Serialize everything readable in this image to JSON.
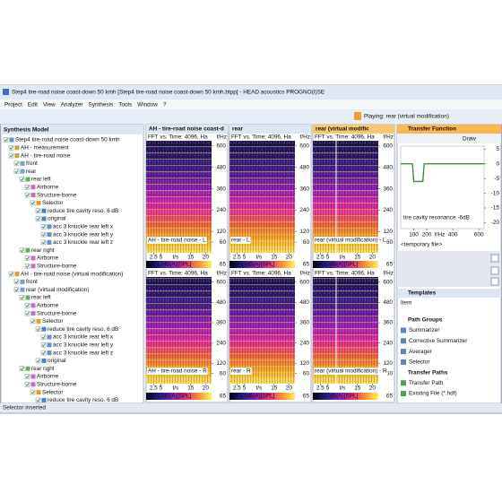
{
  "window": {
    "title": "Step4 tire-road noise coast-down 50 kmh [Step4 tire-road noise coast-down 50 kmh.btpp] - HEAD acoustics PROGNO(I)SE",
    "menu": [
      "Project",
      "Edit",
      "View",
      "Analyzer",
      "Synthesis",
      "Tools",
      "Window",
      "?"
    ],
    "playing": "Playing: rear (virtual modification)"
  },
  "synthesis_model": {
    "title": "Synthesis Model",
    "items": [
      "Step4 tire-road noise coast-down 50 kmh",
      "AH - measurement",
      "AH - tire-road noise",
      "front",
      "rear",
      "rear left",
      "Airborne",
      "Structure-borne",
      "Selector",
      "reduce tire cavity reso. 6 dB",
      "original",
      "acc 3 knuckle rear left x",
      "acc 3 knuckle rear left y",
      "acc 3 knuckle rear left z",
      "rear right",
      "Airborne",
      "Structure-borne",
      "AH - tire-road noise (virtual modification)",
      "front",
      "rear (virtual modification)",
      "rear left",
      "Airborne",
      "Structure-borne",
      "Selector",
      "reduce tire cavity reso. 6 dB",
      "acc 3 knuckle rear left x",
      "acc 3 knuckle rear left y",
      "acc 3 knuckle rear left z",
      "original",
      "rear right",
      "Airborne",
      "Structure-borne",
      "Selector",
      "reduce tire cavity reso. 6 dB"
    ]
  },
  "views": {
    "tabs": [
      "AH - tire-road noise coast-d",
      "rear",
      "rear (virtual modific"
    ],
    "axis_title": "FFT vs. Time: 4096, Ha",
    "y_unit": "f/Hz",
    "ylim": [
      0,
      630
    ],
    "yticks": [
      600,
      480,
      360,
      240,
      120,
      60
    ],
    "xlim": [
      0,
      22
    ],
    "xticks": [
      2.5,
      5,
      15,
      20
    ],
    "x_unit": "t/s",
    "colorbar": {
      "min": 30,
      "label": "L/dB(A)[SPL]",
      "max": 65
    },
    "captions": [
      [
        "AH - tire-road noise - L",
        "rear - L",
        "rear (virtual modification) - L"
      ],
      [
        "AH - tire-road noise - R",
        "rear - R",
        "rear (virtual modification) - R"
      ]
    ]
  },
  "transfer_function": {
    "title": "Transfer Function",
    "draw": "Draw",
    "xlim": [
      0,
      640
    ],
    "xticks": [
      100,
      200,
      400,
      600
    ],
    "x_unit": "f/Hz",
    "ylim": [
      -22,
      6
    ],
    "yticks": [
      5,
      0,
      -5,
      -10,
      -15,
      -20
    ],
    "x": [
      0,
      90,
      100,
      170,
      180,
      640
    ],
    "values": [
      0,
      0,
      -6,
      -6,
      0,
      0
    ],
    "color": "#2e8b2e",
    "annotation": "tire cavity resonance -6dB",
    "file": "<temporary file>"
  },
  "templates": {
    "title": "Templates",
    "item": "Item",
    "groups": [
      {
        "title": "Path Groups",
        "items": [
          "Summarizer",
          "Corrective Summarizer",
          "Averager",
          "Selector"
        ]
      },
      {
        "title": "Transfer Paths",
        "items": [
          "Transfer Path",
          "Existing File (*.hdf)"
        ]
      }
    ]
  },
  "status": "Selector inserted"
}
